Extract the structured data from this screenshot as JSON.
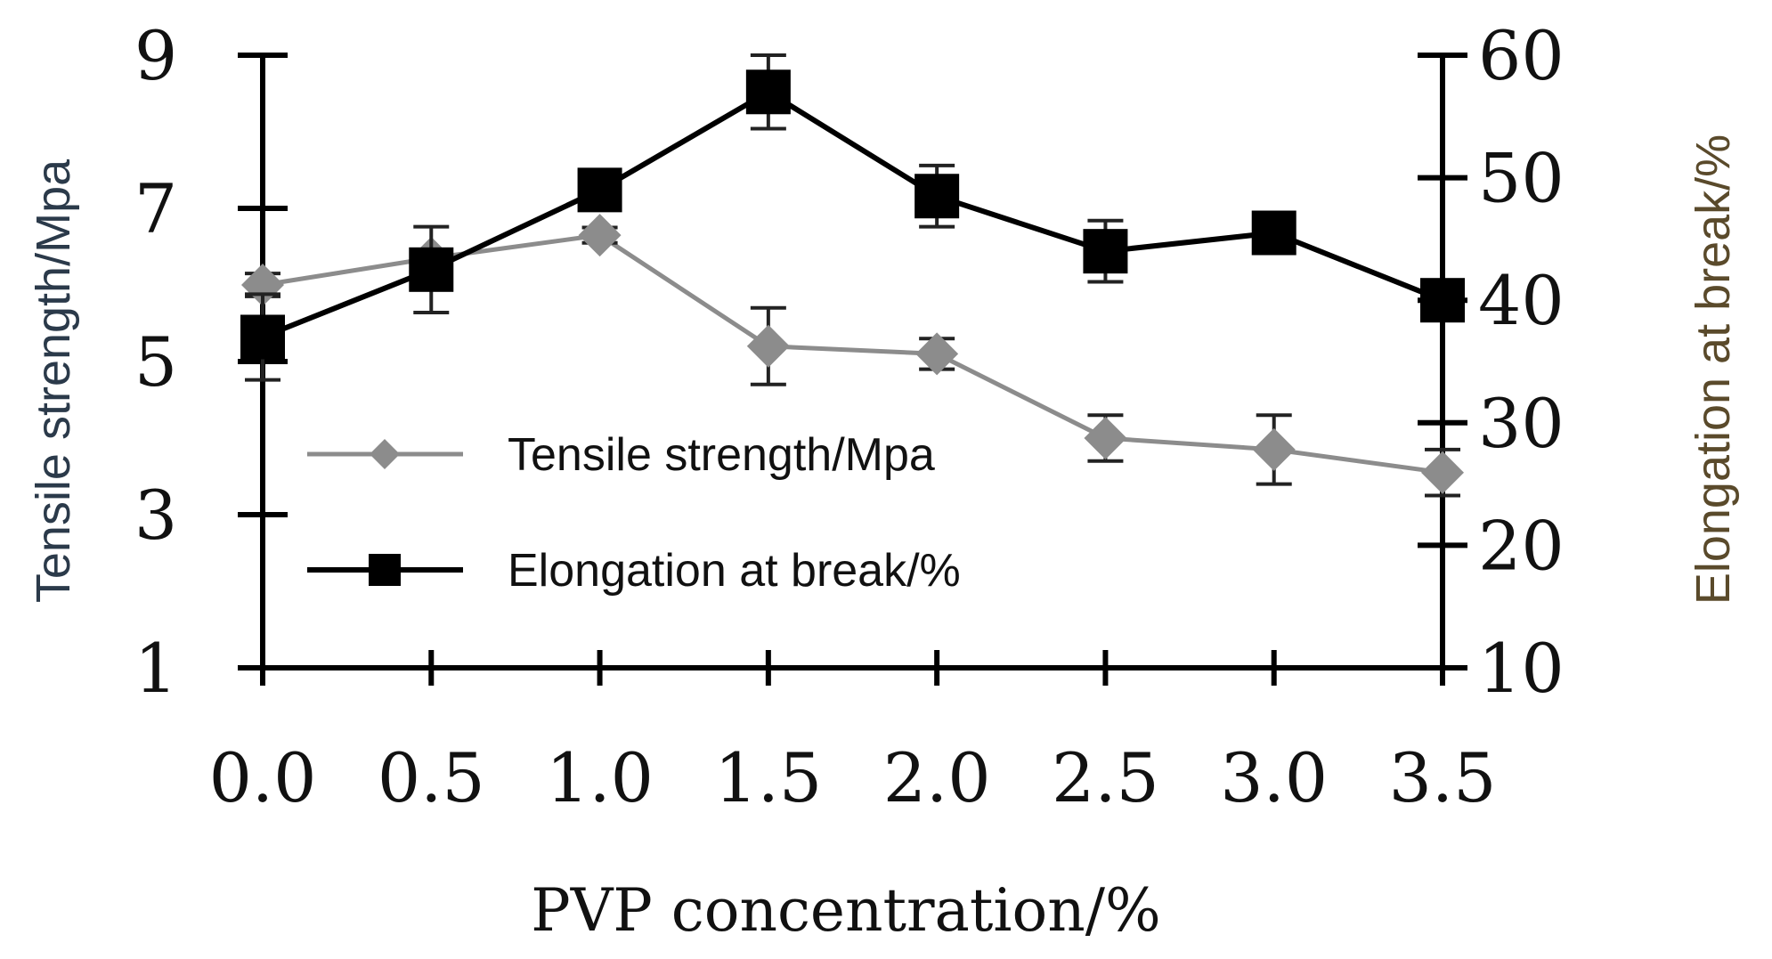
{
  "chart_data": {
    "type": "line",
    "xlabel": "PVP concentration/%",
    "ylabel_left": "Tensile strength/Mpa",
    "ylabel_right": "Elongation at break/%",
    "x": [
      0.0,
      0.5,
      1.0,
      1.5,
      2.0,
      2.5,
      3.0,
      3.5
    ],
    "x_tick_labels": [
      "0.0",
      "0.5",
      "1.0",
      "1.5",
      "2.0",
      "2.5",
      "3.0",
      "3.5"
    ],
    "ylim_left": [
      1,
      9
    ],
    "ylim_right": [
      10,
      60
    ],
    "y_left_ticks": [
      1,
      3,
      5,
      7,
      9
    ],
    "y_left_tick_labels": [
      "1",
      "3",
      "5",
      "7",
      "9"
    ],
    "y_right_ticks": [
      10,
      20,
      30,
      40,
      50,
      60
    ],
    "y_right_tick_labels": [
      "10",
      "20",
      "30",
      "40",
      "50",
      "60"
    ],
    "grid": false,
    "legend_position": "lower-left",
    "series": [
      {
        "name": "Tensile strength/Mpa",
        "axis": "left",
        "marker": "diamond",
        "color": "#8c8c8c",
        "values": [
          6.0,
          6.35,
          6.65,
          5.2,
          5.1,
          4.0,
          3.85,
          3.55
        ],
        "errors": [
          0.15,
          0.1,
          0.1,
          0.5,
          0.2,
          0.3,
          0.45,
          0.3
        ]
      },
      {
        "name": "Elongation at break/%",
        "axis": "right",
        "marker": "square",
        "color": "#000000",
        "values": [
          37.0,
          42.5,
          49.0,
          57.0,
          48.5,
          44.0,
          45.5,
          40.0
        ],
        "errors": [
          3.5,
          3.5,
          1.0,
          3.0,
          2.5,
          2.5,
          1.0,
          0.5
        ]
      }
    ],
    "colors": {
      "axis": "#000000",
      "left_title": "#2b3a4a",
      "right_title": "#5a4a2b"
    }
  }
}
